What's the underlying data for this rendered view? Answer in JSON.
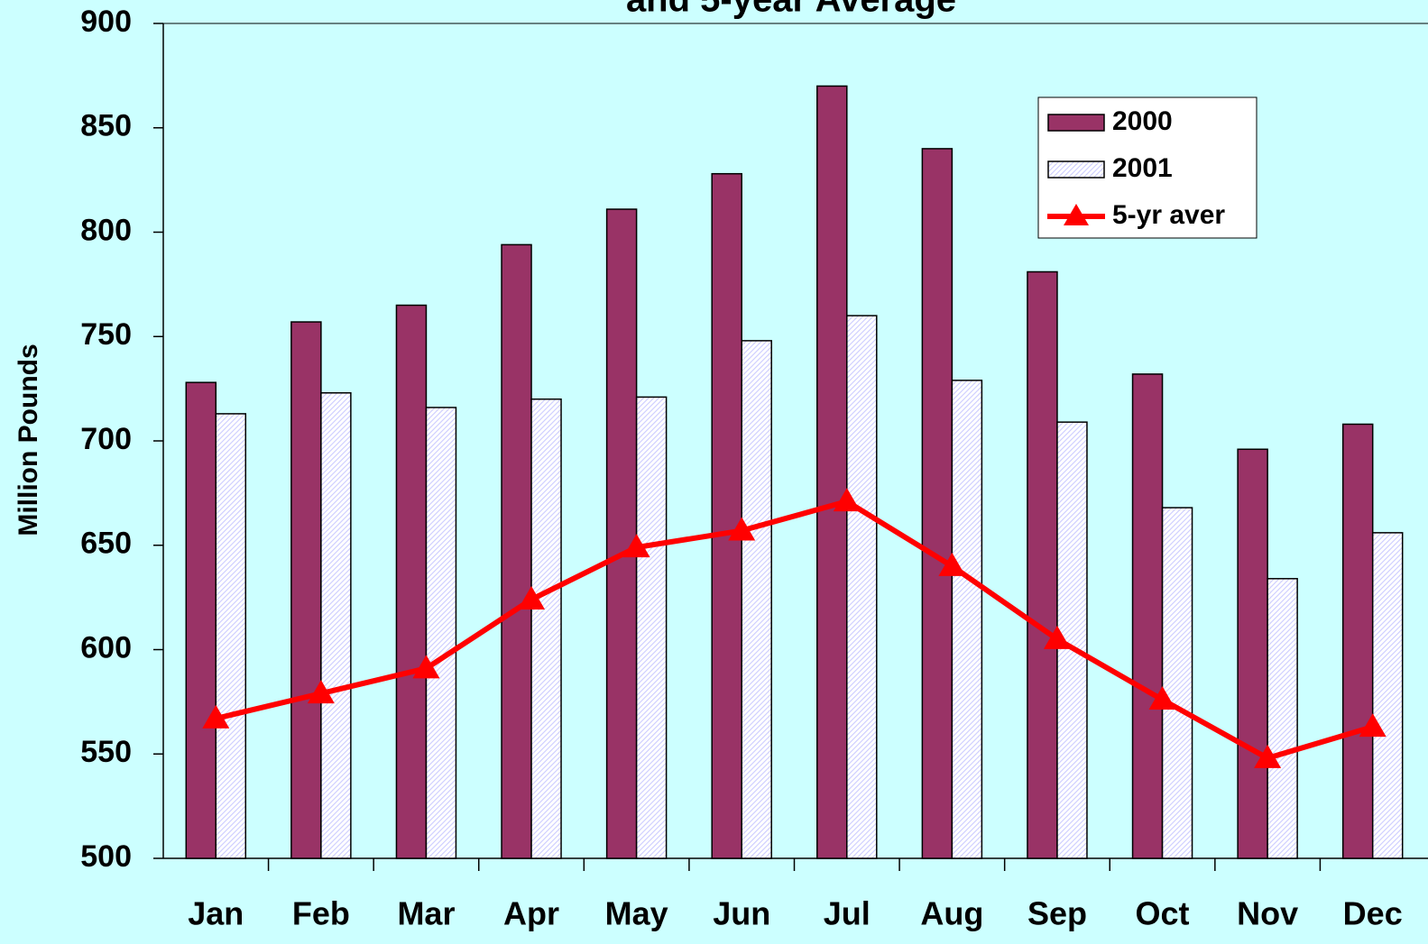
{
  "chart_data": {
    "type": "bar",
    "title": "and 5-year Average",
    "y_label": "Million Pounds",
    "categories": [
      "Jan",
      "Feb",
      "Mar",
      "Apr",
      "May",
      "Jun",
      "Jul",
      "Aug",
      "Sep",
      "Oct",
      "Nov",
      "Dec"
    ],
    "series": [
      {
        "name": "2000",
        "type": "bar",
        "color": "#993366",
        "values": [
          728,
          757,
          765,
          794,
          811,
          828,
          870,
          840,
          781,
          732,
          696,
          708
        ]
      },
      {
        "name": "2001",
        "type": "bar",
        "color": "#ccccff",
        "values": [
          713,
          723,
          716,
          720,
          721,
          748,
          760,
          729,
          709,
          668,
          634,
          656
        ]
      },
      {
        "name": "5-yr aver",
        "type": "line",
        "color": "#ff0000",
        "values": [
          567,
          579,
          591,
          624,
          649,
          657,
          671,
          640,
          605,
          576,
          548,
          563
        ]
      }
    ],
    "ylim": [
      500,
      900
    ],
    "yticks": [
      500,
      550,
      600,
      650,
      700,
      750,
      800,
      850,
      900
    ],
    "legend": "upper right"
  }
}
